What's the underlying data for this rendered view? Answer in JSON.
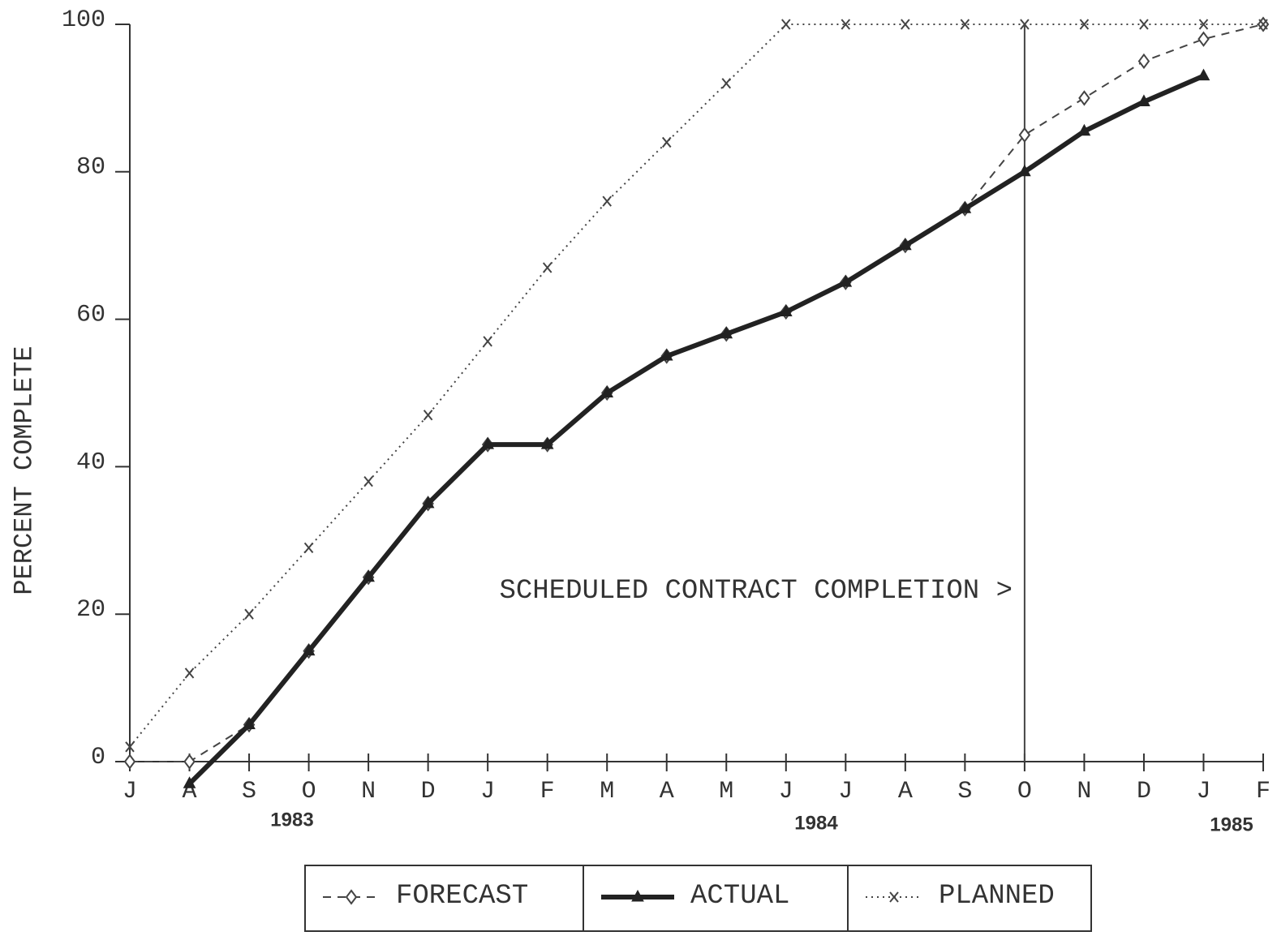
{
  "chart_data": {
    "type": "line",
    "y_label": "PERCENT COMPLETE",
    "categories": [
      "J",
      "A",
      "S",
      "O",
      "N",
      "D",
      "J",
      "F",
      "M",
      "A",
      "M",
      "J",
      "J",
      "A",
      "S",
      "O",
      "N",
      "D",
      "J",
      "F"
    ],
    "years": [
      "1983",
      "1984",
      "1985"
    ],
    "annotation": "SCHEDULED CONTRACT COMPLETION >",
    "series": [
      {
        "name": "FORECAST",
        "color": "#444",
        "style": "dashed",
        "marker": "diamond",
        "values": [
          0,
          0,
          5,
          15,
          25,
          35,
          43,
          43,
          50,
          55,
          58,
          61,
          65,
          70,
          75,
          85,
          90,
          95,
          98,
          100
        ]
      },
      {
        "name": "ACTUAL",
        "color": "#222",
        "style": "solid",
        "marker": "triangle",
        "values": [
          null,
          -3,
          5,
          15,
          25,
          35,
          43,
          43,
          50,
          55,
          58,
          61,
          65,
          70,
          75,
          80,
          85.5,
          89.5,
          93,
          null
        ]
      },
      {
        "name": "PLANNED",
        "color": "#444",
        "style": "dotted",
        "marker": "x",
        "values": [
          2,
          12,
          20,
          29,
          38,
          47,
          57,
          67,
          76,
          84,
          92,
          100,
          100,
          100,
          100,
          100,
          100,
          100,
          100,
          100
        ]
      }
    ],
    "ylim": [
      0,
      100
    ],
    "yticks": [
      0,
      20,
      40,
      60,
      80,
      100
    ],
    "grid": false
  }
}
